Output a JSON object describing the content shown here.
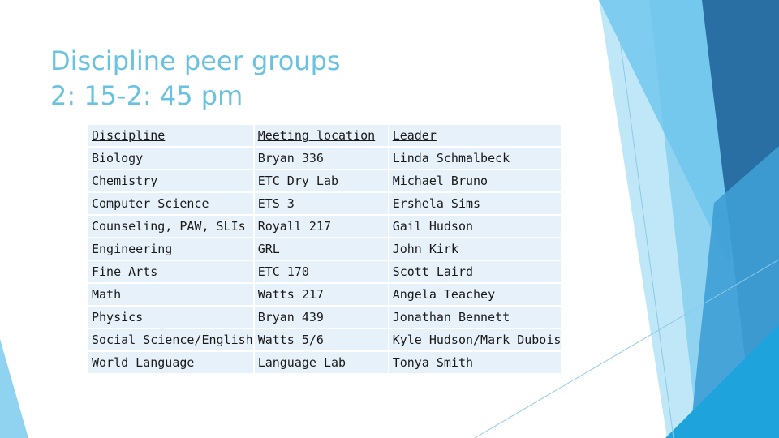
{
  "slide": {
    "title_lines": [
      "Discipline peer groups",
      "2: 15-2: 45 pm"
    ]
  },
  "table": {
    "headers": [
      "Discipline",
      "Meeting location",
      "Leader"
    ],
    "rows": [
      [
        "Biology",
        "Bryan 336",
        "Linda Schmalbeck"
      ],
      [
        "Chemistry",
        "ETC Dry Lab",
        "Michael Bruno"
      ],
      [
        "Computer Science",
        "ETS 3",
        "Ershela Sims"
      ],
      [
        "Counseling, PAW, SLIs",
        "Royall 217",
        "Gail Hudson"
      ],
      [
        "Engineering",
        "GRL",
        "John Kirk"
      ],
      [
        "Fine Arts",
        "ETC 170",
        "Scott Laird"
      ],
      [
        "Math",
        "Watts 217",
        "Angela Teachey"
      ],
      [
        "Physics",
        "Bryan 439",
        "Jonathan Bennett"
      ],
      [
        "Social Science/English",
        "Watts 5/6",
        "Kyle Hudson/Mark Dubois"
      ],
      [
        "World Language",
        "Language Lab",
        "Tonya Smith"
      ]
    ]
  },
  "theme": {
    "title_color": "#69c3e0",
    "cell_background": "#e7f1fa",
    "accent_dark": "#2a6fa3",
    "accent_mid": "#3e9fd6",
    "accent_light": "#8fd3f1"
  }
}
